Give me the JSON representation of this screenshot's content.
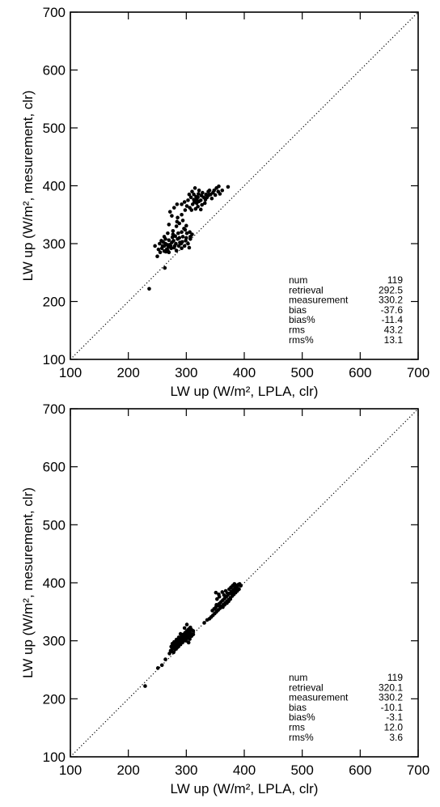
{
  "chart_data": [
    {
      "type": "scatter",
      "xlabel": "LW up (W/m², LPLA, clr)",
      "ylabel": "LW up (W/m², mesurement, clr)",
      "xlim": [
        100,
        700
      ],
      "ylim": [
        100,
        700
      ],
      "xticks": [
        "100",
        "200",
        "300",
        "400",
        "500",
        "600",
        "700"
      ],
      "yticks": [
        "100",
        "200",
        "300",
        "400",
        "500",
        "600",
        "700"
      ],
      "grid": false,
      "reference_line": "1:1 dotted",
      "stats": [
        {
          "label": "num",
          "value": "119"
        },
        {
          "label": "retrieval",
          "value": "292.5"
        },
        {
          "label": "measurement",
          "value": "330.2"
        },
        {
          "label": "bias",
          "value": "-37.6"
        },
        {
          "label": "bias%",
          "value": "-11.4"
        },
        {
          "label": "rms",
          "value": "43.2"
        },
        {
          "label": "rms%",
          "value": "13.1"
        }
      ],
      "series": [
        {
          "points": [
            [
              236,
              222
            ],
            [
              263,
              258
            ],
            [
              250,
              278
            ],
            [
              255,
              285
            ],
            [
              262,
              287
            ],
            [
              252,
              290
            ],
            [
              258,
              292
            ],
            [
              266,
              290
            ],
            [
              270,
              285
            ],
            [
              246,
              296
            ],
            [
              254,
              300
            ],
            [
              260,
              303
            ],
            [
              267,
              298
            ],
            [
              273,
              296
            ],
            [
              279,
              293
            ],
            [
              283,
              288
            ],
            [
              287,
              296
            ],
            [
              292,
              292
            ],
            [
              297,
              296
            ],
            [
              303,
              300
            ],
            [
              305,
              293
            ],
            [
              257,
              305
            ],
            [
              264,
              308
            ],
            [
              270,
              306
            ],
            [
              276,
              311
            ],
            [
              281,
              313
            ],
            [
              288,
              310
            ],
            [
              293,
              303
            ],
            [
              300,
              310
            ],
            [
              307,
              308
            ],
            [
              262,
              312
            ],
            [
              268,
              318
            ],
            [
              277,
              316
            ],
            [
              286,
              318
            ],
            [
              292,
              320
            ],
            [
              298,
              324
            ],
            [
              306,
              320
            ],
            [
              310,
              316
            ],
            [
              277,
              322
            ],
            [
              283,
              330
            ],
            [
              288,
              335
            ],
            [
              294,
              340
            ],
            [
              285,
              345
            ],
            [
              270,
              333
            ],
            [
              275,
              348
            ],
            [
              272,
              355
            ],
            [
              279,
              362
            ],
            [
              284,
              368
            ],
            [
              292,
              368
            ],
            [
              297,
              372
            ],
            [
              301,
              365
            ],
            [
              306,
              362
            ],
            [
              311,
              368
            ],
            [
              314,
              372
            ],
            [
              318,
              376
            ],
            [
              322,
              373
            ],
            [
              309,
              358
            ],
            [
              316,
              360
            ],
            [
              320,
              364
            ],
            [
              325,
              359
            ],
            [
              303,
              375
            ],
            [
              308,
              380
            ],
            [
              313,
              385
            ],
            [
              317,
              381
            ],
            [
              321,
              386
            ],
            [
              326,
              383
            ],
            [
              330,
              380
            ],
            [
              334,
              385
            ],
            [
              338,
              390
            ],
            [
              342,
              385
            ],
            [
              346,
              388
            ],
            [
              350,
              384
            ],
            [
              355,
              390
            ],
            [
              358,
              386
            ],
            [
              362,
              392
            ],
            [
              372,
              398
            ],
            [
              310,
              390
            ],
            [
              315,
              396
            ],
            [
              322,
              392
            ],
            [
              328,
              388
            ],
            [
              340,
              392
            ],
            [
              352,
              396
            ],
            [
              356,
              399
            ],
            [
              318,
              370
            ],
            [
              305,
              385
            ],
            [
              325,
              375
            ],
            [
              332,
              370
            ],
            [
              336,
              380
            ],
            [
              344,
              378
            ],
            [
              348,
              392
            ],
            [
              264,
              300
            ],
            [
              269,
              294
            ],
            [
              282,
              300
            ],
            [
              289,
              302
            ],
            [
              299,
              305
            ],
            [
              259,
              296
            ],
            [
              265,
              286
            ],
            [
              271,
              298
            ],
            [
              278,
              305
            ],
            [
              294,
              312
            ],
            [
              301,
              318
            ],
            [
              307,
              312
            ],
            [
              280,
              296
            ],
            [
              275,
              302
            ],
            [
              285,
              308
            ],
            [
              291,
              300
            ],
            [
              262,
              296
            ],
            [
              268,
              288
            ],
            [
              274,
              292
            ],
            [
              296,
              326
            ],
            [
              300,
              331
            ],
            [
              284,
              338
            ],
            [
              292,
              350
            ],
            [
              298,
              358
            ],
            [
              313,
              376
            ],
            [
              320,
              380
            ],
            [
              327,
              367
            ],
            [
              333,
              376
            ],
            [
              339,
              384
            ]
          ]
        }
      ]
    },
    {
      "type": "scatter",
      "xlabel": "LW up (W/m², LPLA, clr)",
      "ylabel": "LW up (W/m², mesurement, clr)",
      "xlim": [
        100,
        700
      ],
      "ylim": [
        100,
        700
      ],
      "xticks": [
        "100",
        "200",
        "300",
        "400",
        "500",
        "600",
        "700"
      ],
      "yticks": [
        "100",
        "200",
        "300",
        "400",
        "500",
        "600",
        "700"
      ],
      "grid": false,
      "reference_line": "1:1 dotted",
      "stats": [
        {
          "label": "num",
          "value": "119"
        },
        {
          "label": "retrieval",
          "value": "320.1"
        },
        {
          "label": "measurement",
          "value": "330.2"
        },
        {
          "label": "bias",
          "value": "-10.1"
        },
        {
          "label": "bias%",
          "value": "-3.1"
        },
        {
          "label": "rms",
          "value": "12.0"
        },
        {
          "label": "rms%",
          "value": "3.6"
        }
      ],
      "series": [
        {
          "points": [
            [
              229,
              222
            ],
            [
              258,
              258
            ],
            [
              271,
              278
            ],
            [
              273,
              283
            ],
            [
              276,
              286
            ],
            [
              279,
              289
            ],
            [
              282,
              292
            ],
            [
              285,
              295
            ],
            [
              288,
              298
            ],
            [
              291,
              301
            ],
            [
              294,
              304
            ],
            [
              297,
              307
            ],
            [
              300,
              310
            ],
            [
              303,
              313
            ],
            [
              306,
              316
            ],
            [
              309,
              319
            ],
            [
              312,
              317
            ],
            [
              275,
              282
            ],
            [
              278,
              280
            ],
            [
              281,
              285
            ],
            [
              284,
              288
            ],
            [
              287,
              291
            ],
            [
              290,
              294
            ],
            [
              293,
              297
            ],
            [
              296,
              300
            ],
            [
              299,
              303
            ],
            [
              302,
              306
            ],
            [
              305,
              309
            ],
            [
              308,
              312
            ],
            [
              274,
              290
            ],
            [
              277,
              293
            ],
            [
              280,
              296
            ],
            [
              283,
              299
            ],
            [
              286,
              302
            ],
            [
              289,
              305
            ],
            [
              292,
              308
            ],
            [
              295,
              311
            ],
            [
              298,
              314
            ],
            [
              301,
              317
            ],
            [
              304,
              320
            ],
            [
              307,
              323
            ],
            [
              297,
              322
            ],
            [
              301,
              328
            ],
            [
              290,
              312
            ],
            [
              287,
              306
            ],
            [
              283,
              302
            ],
            [
              279,
              298
            ],
            [
              276,
              295
            ],
            [
              300,
              300
            ],
            [
              303,
              305
            ],
            [
              306,
              303
            ],
            [
              309,
              308
            ],
            [
              312,
              311
            ],
            [
              304,
              297
            ],
            [
              251,
              253
            ],
            [
              264,
              268
            ],
            [
              340,
              338
            ],
            [
              343,
              341
            ],
            [
              346,
              344
            ],
            [
              349,
              347
            ],
            [
              352,
              350
            ],
            [
              355,
              353
            ],
            [
              358,
              356
            ],
            [
              361,
              359
            ],
            [
              364,
              362
            ],
            [
              367,
              365
            ],
            [
              370,
              368
            ],
            [
              373,
              371
            ],
            [
              376,
              374
            ],
            [
              379,
              377
            ],
            [
              382,
              380
            ],
            [
              385,
              383
            ],
            [
              388,
              386
            ],
            [
              391,
              389
            ],
            [
              345,
              352
            ],
            [
              348,
              355
            ],
            [
              351,
              358
            ],
            [
              354,
              361
            ],
            [
              357,
              364
            ],
            [
              360,
              367
            ],
            [
              363,
              370
            ],
            [
              366,
              373
            ],
            [
              369,
              376
            ],
            [
              372,
              379
            ],
            [
              375,
              382
            ],
            [
              378,
              385
            ],
            [
              381,
              388
            ],
            [
              384,
              391
            ],
            [
              387,
              394
            ],
            [
              390,
              397
            ],
            [
              353,
              372
            ],
            [
              357,
              376
            ],
            [
              351,
              383
            ],
            [
              356,
              380
            ],
            [
              362,
              384
            ],
            [
              365,
              379
            ],
            [
              368,
              386
            ],
            [
              371,
              382
            ],
            [
              374,
              389
            ],
            [
              377,
              392
            ],
            [
              380,
              395
            ],
            [
              383,
              398
            ],
            [
              392,
              398
            ],
            [
              394,
              395
            ],
            [
              349,
              355
            ],
            [
              352,
              362
            ],
            [
              359,
              360
            ],
            [
              363,
              358
            ],
            [
              366,
              362
            ],
            [
              370,
              365
            ],
            [
              373,
              368
            ],
            [
              376,
              372
            ],
            [
              379,
              380
            ],
            [
              382,
              385
            ],
            [
              385,
              389
            ],
            [
              388,
              393
            ],
            [
              384,
              397
            ],
            [
              336,
              336
            ],
            [
              331,
              331
            ]
          ]
        }
      ]
    }
  ]
}
